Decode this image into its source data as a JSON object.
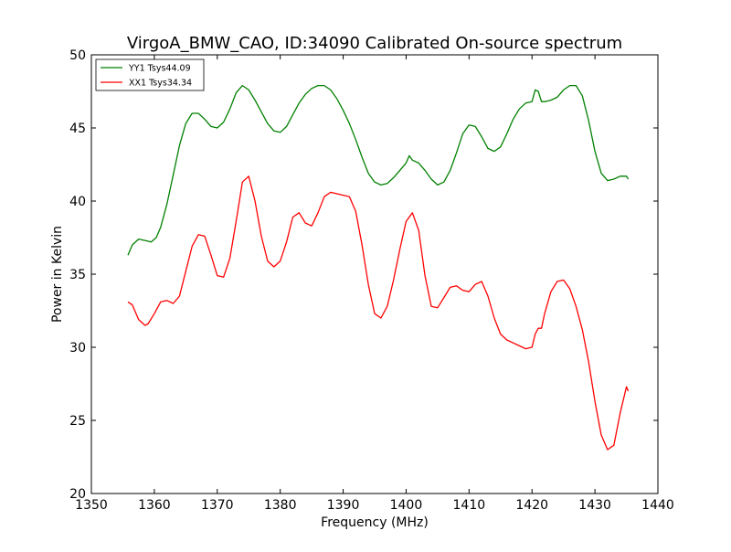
{
  "chart_data": {
    "type": "line",
    "title": "VirgoA_BMW_CAO, ID:34090 Calibrated On-source spectrum",
    "xlabel": "Frequency (MHz)",
    "ylabel": "Power in Kelvin",
    "xlim": [
      1350,
      1440
    ],
    "ylim": [
      20,
      50
    ],
    "xticks": [
      1350,
      1360,
      1370,
      1380,
      1390,
      1400,
      1410,
      1420,
      1430,
      1440
    ],
    "yticks": [
      20,
      25,
      30,
      35,
      40,
      45,
      50
    ],
    "grid": false,
    "legend_position": "top-left",
    "series": [
      {
        "name": "YY1 Tsys44.09",
        "color": "#008000",
        "x": [
          1355.8,
          1356.5,
          1357.5,
          1358.6,
          1359.5,
          1360.3,
          1361.0,
          1362.0,
          1363.0,
          1364.0,
          1365.0,
          1366.0,
          1367.0,
          1368.0,
          1369.0,
          1370.0,
          1371.0,
          1372.0,
          1373.0,
          1374.0,
          1375.0,
          1376.0,
          1377.0,
          1378.0,
          1379.0,
          1380.0,
          1381.0,
          1382.0,
          1383.0,
          1384.0,
          1385.0,
          1386.0,
          1387.0,
          1388.0,
          1389.0,
          1390.0,
          1391.0,
          1392.0,
          1393.0,
          1394.0,
          1395.0,
          1396.0,
          1397.0,
          1398.0,
          1399.0,
          1400.0,
          1400.5,
          1401.0,
          1401.5,
          1402.0,
          1403.0,
          1404.0,
          1405.0,
          1406.0,
          1407.0,
          1408.0,
          1409.0,
          1410.0,
          1411.0,
          1412.0,
          1413.0,
          1414.0,
          1415.0,
          1416.0,
          1417.0,
          1418.0,
          1419.0,
          1420.0,
          1420.5,
          1421.0,
          1421.5,
          1422.0,
          1423.0,
          1424.0,
          1425.0,
          1426.0,
          1427.0,
          1428.0,
          1429.0,
          1430.0,
          1431.0,
          1432.0,
          1433.0,
          1434.0,
          1435.0,
          1435.3
        ],
        "y": [
          36.3,
          37.0,
          37.4,
          37.3,
          37.2,
          37.5,
          38.2,
          39.8,
          41.8,
          43.8,
          45.3,
          46.0,
          46.0,
          45.6,
          45.1,
          45.0,
          45.4,
          46.3,
          47.4,
          47.9,
          47.6,
          46.9,
          46.1,
          45.3,
          44.8,
          44.7,
          45.1,
          45.9,
          46.7,
          47.3,
          47.7,
          47.9,
          47.9,
          47.6,
          47.0,
          46.2,
          45.3,
          44.2,
          43.0,
          41.9,
          41.3,
          41.1,
          41.2,
          41.6,
          42.1,
          42.6,
          43.1,
          42.8,
          42.7,
          42.6,
          42.1,
          41.5,
          41.1,
          41.3,
          42.1,
          43.3,
          44.6,
          45.2,
          45.1,
          44.4,
          43.6,
          43.4,
          43.7,
          44.6,
          45.6,
          46.3,
          46.7,
          46.8,
          47.6,
          47.5,
          46.8,
          46.8,
          46.9,
          47.1,
          47.6,
          47.9,
          47.9,
          47.2,
          45.5,
          43.4,
          41.9,
          41.4,
          41.5,
          41.7,
          41.7,
          41.5
        ]
      },
      {
        "name": "XX1 Tsys34.34",
        "color": "#ff0000",
        "x": [
          1355.8,
          1356.5,
          1357.5,
          1358.5,
          1359.0,
          1360.0,
          1361.0,
          1362.0,
          1363.0,
          1364.0,
          1365.0,
          1366.0,
          1367.0,
          1368.0,
          1369.0,
          1370.0,
          1371.0,
          1372.0,
          1373.0,
          1374.0,
          1375.0,
          1376.0,
          1377.0,
          1378.0,
          1379.0,
          1380.0,
          1381.0,
          1382.0,
          1383.0,
          1384.0,
          1385.0,
          1386.0,
          1387.0,
          1388.0,
          1389.0,
          1390.0,
          1391.0,
          1392.0,
          1393.0,
          1394.0,
          1395.0,
          1396.0,
          1397.0,
          1398.0,
          1399.0,
          1400.0,
          1401.0,
          1402.0,
          1403.0,
          1404.0,
          1405.0,
          1406.0,
          1407.0,
          1408.0,
          1409.0,
          1410.0,
          1411.0,
          1412.0,
          1413.0,
          1414.0,
          1415.0,
          1416.0,
          1417.0,
          1418.0,
          1419.0,
          1420.0,
          1420.5,
          1421.0,
          1421.5,
          1422.0,
          1423.0,
          1424.0,
          1425.0,
          1426.0,
          1427.0,
          1428.0,
          1429.0,
          1430.0,
          1431.0,
          1432.0,
          1433.0,
          1434.0,
          1435.0,
          1435.3
        ],
        "y": [
          33.1,
          32.9,
          31.9,
          31.5,
          31.6,
          32.3,
          33.1,
          33.2,
          33.0,
          33.5,
          35.2,
          36.9,
          37.7,
          37.6,
          36.3,
          34.9,
          34.8,
          36.1,
          38.6,
          41.3,
          41.7,
          40.0,
          37.6,
          35.9,
          35.5,
          35.9,
          37.2,
          38.9,
          39.2,
          38.5,
          38.3,
          39.2,
          40.3,
          40.6,
          40.5,
          40.4,
          40.3,
          39.3,
          37.0,
          34.3,
          32.3,
          32.0,
          32.8,
          34.6,
          36.7,
          38.6,
          39.2,
          38.0,
          34.9,
          32.8,
          32.7,
          33.4,
          34.1,
          34.2,
          33.9,
          33.8,
          34.3,
          34.5,
          33.5,
          32.0,
          30.9,
          30.5,
          30.3,
          30.1,
          29.9,
          30.0,
          30.9,
          31.3,
          31.3,
          32.3,
          33.8,
          34.5,
          34.6,
          34.0,
          32.8,
          31.2,
          29.0,
          26.3,
          24.0,
          23.0,
          23.3,
          25.5,
          27.3,
          27.0
        ]
      }
    ]
  }
}
